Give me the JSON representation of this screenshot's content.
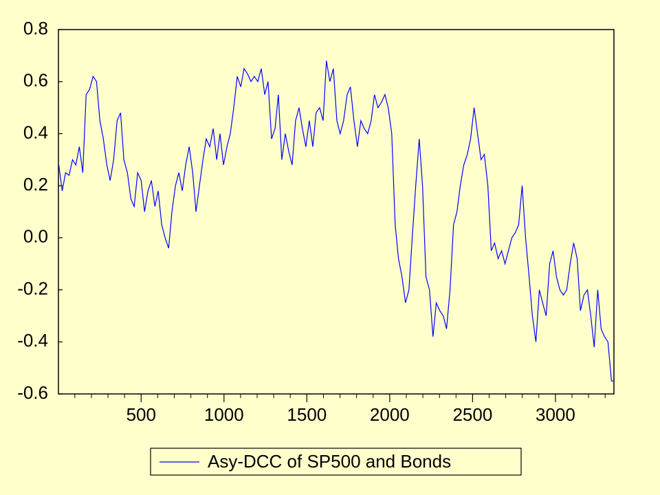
{
  "chart_data": {
    "type": "line",
    "x": [
      3,
      24,
      44,
      65,
      86,
      106,
      127,
      148,
      168,
      189,
      210,
      231,
      251,
      272,
      293,
      313,
      334,
      355,
      376,
      396,
      417,
      438,
      458,
      479,
      500,
      521,
      541,
      562,
      583,
      603,
      624,
      645,
      666,
      686,
      707,
      728,
      748,
      769,
      790,
      811,
      831,
      852,
      873,
      893,
      914,
      935,
      956,
      976,
      997,
      1018,
      1038,
      1059,
      1080,
      1101,
      1121,
      1142,
      1163,
      1183,
      1204,
      1225,
      1246,
      1266,
      1287,
      1308,
      1328,
      1349,
      1370,
      1391,
      1411,
      1432,
      1453,
      1473,
      1494,
      1515,
      1536,
      1556,
      1577,
      1598,
      1618,
      1639,
      1660,
      1681,
      1701,
      1722,
      1743,
      1763,
      1784,
      1805,
      1826,
      1846,
      1867,
      1888,
      1908,
      1929,
      1950,
      1971,
      1991,
      2012,
      2033,
      2053,
      2074,
      2095,
      2116,
      2136,
      2157,
      2178,
      2198,
      2219,
      2240,
      2261,
      2281,
      2302,
      2323,
      2343,
      2364,
      2385,
      2406,
      2426,
      2447,
      2468,
      2488,
      2509,
      2530,
      2551,
      2571,
      2592,
      2613,
      2633,
      2654,
      2675,
      2696,
      2716,
      2737,
      2758,
      2778,
      2799,
      2820,
      2841,
      2861,
      2882,
      2903,
      2923,
      2944,
      2965,
      2986,
      3006,
      3027,
      3048,
      3068,
      3089,
      3110,
      3131,
      3151,
      3172,
      3193,
      3213,
      3234,
      3255,
      3276,
      3296,
      3317,
      3338,
      3353
    ],
    "series": [
      {
        "name": "Asy-DCC of SP500 and Bonds",
        "color": "#0000ff",
        "values": [
          0.28,
          0.18,
          0.25,
          0.24,
          0.3,
          0.28,
          0.35,
          0.25,
          0.55,
          0.57,
          0.62,
          0.6,
          0.45,
          0.38,
          0.28,
          0.22,
          0.3,
          0.45,
          0.48,
          0.3,
          0.25,
          0.15,
          0.12,
          0.25,
          0.22,
          0.1,
          0.18,
          0.22,
          0.12,
          0.18,
          0.05,
          0.0,
          -0.04,
          0.1,
          0.2,
          0.25,
          0.18,
          0.28,
          0.35,
          0.25,
          0.1,
          0.2,
          0.3,
          0.38,
          0.35,
          0.42,
          0.3,
          0.4,
          0.28,
          0.35,
          0.4,
          0.5,
          0.62,
          0.58,
          0.65,
          0.63,
          0.6,
          0.62,
          0.6,
          0.65,
          0.55,
          0.6,
          0.38,
          0.42,
          0.55,
          0.3,
          0.4,
          0.33,
          0.28,
          0.45,
          0.5,
          0.42,
          0.35,
          0.45,
          0.35,
          0.48,
          0.5,
          0.45,
          0.68,
          0.6,
          0.65,
          0.45,
          0.4,
          0.45,
          0.55,
          0.58,
          0.45,
          0.35,
          0.45,
          0.42,
          0.4,
          0.45,
          0.55,
          0.5,
          0.52,
          0.55,
          0.5,
          0.4,
          0.05,
          -0.08,
          -0.15,
          -0.25,
          -0.2,
          0.0,
          0.2,
          0.38,
          0.2,
          -0.15,
          -0.2,
          -0.38,
          -0.25,
          -0.28,
          -0.3,
          -0.35,
          -0.2,
          0.05,
          0.1,
          0.2,
          0.28,
          0.32,
          0.38,
          0.5,
          0.4,
          0.3,
          0.32,
          0.2,
          -0.05,
          -0.02,
          -0.08,
          -0.05,
          -0.1,
          -0.05,
          0.0,
          0.02,
          0.05,
          0.2,
          0.0,
          -0.15,
          -0.3,
          -0.4,
          -0.2,
          -0.25,
          -0.3,
          -0.1,
          -0.05,
          -0.15,
          -0.2,
          -0.22,
          -0.2,
          -0.1,
          -0.02,
          -0.08,
          -0.28,
          -0.22,
          -0.2,
          -0.3,
          -0.42,
          -0.2,
          -0.35,
          -0.38,
          -0.4,
          -0.55,
          -0.55
        ]
      }
    ],
    "xlim": [
      1,
      3353
    ],
    "xticks": [
      500,
      1000,
      1500,
      2000,
      2500,
      3000
    ],
    "xminorticks": [
      100,
      200,
      300,
      400,
      600,
      700,
      800,
      900,
      1100,
      1200,
      1300,
      1400,
      1600,
      1700,
      1800,
      1900,
      2100,
      2200,
      2300,
      2400,
      2600,
      2700,
      2800,
      2900,
      3100,
      3200,
      3300
    ],
    "ylim": [
      -0.6,
      0.8
    ],
    "yticks": [
      -0.6,
      -0.4,
      -0.2,
      {
        "value": 0,
        "label": "0.0"
      },
      0.2,
      0.4,
      0.6,
      0.8
    ],
    "legend": "bottom"
  }
}
